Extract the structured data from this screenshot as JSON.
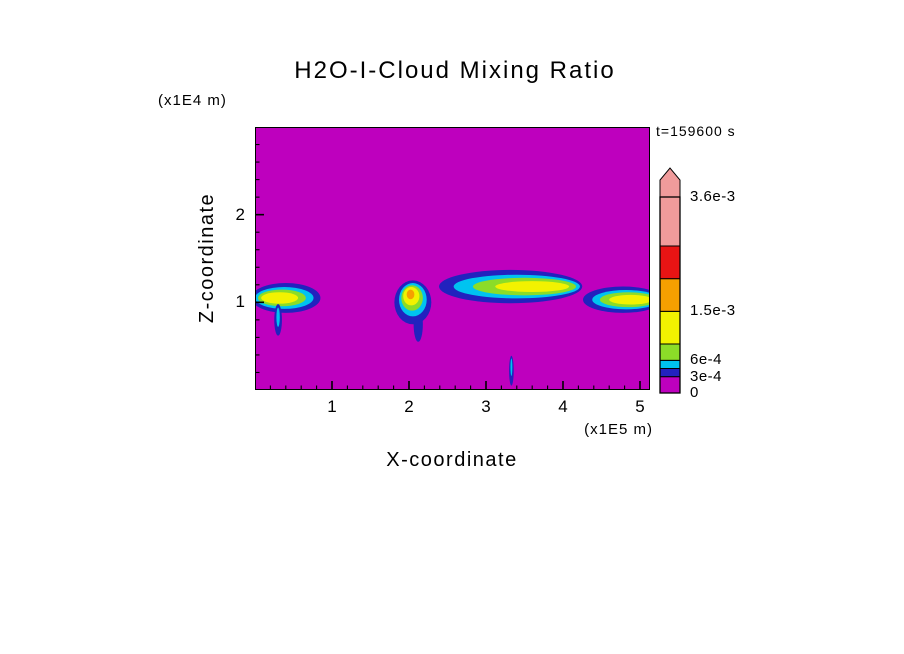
{
  "chart_data": {
    "type": "heatmap",
    "title": "H2O-I-Cloud Mixing Ratio",
    "time_label": "t=159600 s",
    "xlabel": "X-coordinate",
    "x_unit": "(x1E5 m)",
    "zlabel": "Z-coordinate",
    "z_unit": "(x1E4 m)",
    "xlim": [
      0,
      5.13
    ],
    "zlim": [
      0,
      3.0
    ],
    "x_ticks": [
      "1",
      "2",
      "3",
      "4",
      "5"
    ],
    "z_ticks": [
      "1",
      "2"
    ],
    "minor_tick_step": 0.2,
    "background_color": "#BE00BE",
    "frame_color": "#000000",
    "colorbar": {
      "range": [
        0,
        0.0036
      ],
      "overflow_arrow": true,
      "segments": [
        {
          "color": "#BE00BE",
          "from": 0,
          "to": 0.0003
        },
        {
          "color": "#2222BE",
          "from": 0.0003,
          "to": 0.00045
        },
        {
          "color": "#00C3F0",
          "from": 0.00045,
          "to": 0.0006
        },
        {
          "color": "#8CDC28",
          "from": 0.0006,
          "to": 0.0009
        },
        {
          "color": "#F2F200",
          "from": 0.0009,
          "to": 0.0015
        },
        {
          "color": "#F5A000",
          "from": 0.0015,
          "to": 0.0021
        },
        {
          "color": "#E81414",
          "from": 0.0021,
          "to": 0.0027
        },
        {
          "color": "#F09B9B",
          "from": 0.0027,
          "to": 0.0036
        }
      ],
      "labels": [
        {
          "text": "3.6e-3",
          "value": 0.0036
        },
        {
          "text": "1.5e-3",
          "value": 0.0015
        },
        {
          "text": "6e-4",
          "value": 0.0006
        },
        {
          "text": "3e-4",
          "value": 0.0003
        },
        {
          "text": "0",
          "value": 0
        }
      ]
    },
    "features": [
      {
        "name": "left-cloud",
        "layers": [
          {
            "color": "#2222BE",
            "cx": 0.4,
            "cz": 1.05,
            "rx": 0.45,
            "rz": 0.17
          },
          {
            "color": "#00C3F0",
            "cx": 0.38,
            "cz": 1.05,
            "rx": 0.38,
            "rz": 0.125
          },
          {
            "color": "#8CDC28",
            "cx": 0.35,
            "cz": 1.05,
            "rx": 0.31,
            "rz": 0.095
          },
          {
            "color": "#F2F200",
            "cx": 0.32,
            "cz": 1.05,
            "rx": 0.24,
            "rz": 0.065
          }
        ]
      },
      {
        "name": "left-cloud-fallstreak",
        "layers": [
          {
            "color": "#2222BE",
            "cx": 0.3,
            "cz": 0.8,
            "rx": 0.05,
            "rz": 0.18
          },
          {
            "color": "#00C3F0",
            "cx": 0.3,
            "cz": 0.83,
            "rx": 0.022,
            "rz": 0.11
          }
        ]
      },
      {
        "name": "central-cloud",
        "layers": [
          {
            "color": "#2222BE",
            "cx": 2.12,
            "cz": 0.75,
            "rx": 0.06,
            "rz": 0.2
          },
          {
            "color": "#2222BE",
            "cx": 2.05,
            "cz": 1.0,
            "rx": 0.24,
            "rz": 0.25
          },
          {
            "color": "#00C3F0",
            "cx": 2.05,
            "cz": 1.03,
            "rx": 0.18,
            "rz": 0.19
          },
          {
            "color": "#8CDC28",
            "cx": 2.04,
            "cz": 1.05,
            "rx": 0.14,
            "rz": 0.145
          },
          {
            "color": "#F2F200",
            "cx": 2.03,
            "cz": 1.07,
            "rx": 0.105,
            "rz": 0.105
          },
          {
            "color": "#F5A000",
            "cx": 2.02,
            "cz": 1.09,
            "rx": 0.05,
            "rz": 0.055
          }
        ]
      },
      {
        "name": "mid-band-cloud",
        "layers": [
          {
            "color": "#2222BE",
            "cx": 3.32,
            "cz": 1.18,
            "rx": 0.93,
            "rz": 0.19
          },
          {
            "color": "#00C3F0",
            "cx": 3.4,
            "cz": 1.18,
            "rx": 0.82,
            "rz": 0.135
          },
          {
            "color": "#8CDC28",
            "cx": 3.5,
            "cz": 1.18,
            "rx": 0.67,
            "rz": 0.1
          },
          {
            "color": "#F2F200",
            "cx": 3.6,
            "cz": 1.18,
            "rx": 0.48,
            "rz": 0.062
          }
        ]
      },
      {
        "name": "right-band-cloud",
        "layers": [
          {
            "color": "#2222BE",
            "cx": 4.78,
            "cz": 1.03,
            "rx": 0.52,
            "rz": 0.15
          },
          {
            "color": "#00C3F0",
            "cx": 4.82,
            "cz": 1.03,
            "rx": 0.44,
            "rz": 0.11
          },
          {
            "color": "#8CDC28",
            "cx": 4.85,
            "cz": 1.03,
            "rx": 0.37,
            "rz": 0.085
          },
          {
            "color": "#F2F200",
            "cx": 4.88,
            "cz": 1.03,
            "rx": 0.28,
            "rz": 0.055
          }
        ]
      },
      {
        "name": "bottom-streak",
        "layers": [
          {
            "color": "#2222BE",
            "cx": 3.33,
            "cz": 0.22,
            "rx": 0.03,
            "rz": 0.17
          },
          {
            "color": "#00C3F0",
            "cx": 3.33,
            "cz": 0.26,
            "rx": 0.012,
            "rz": 0.1
          }
        ]
      }
    ]
  }
}
